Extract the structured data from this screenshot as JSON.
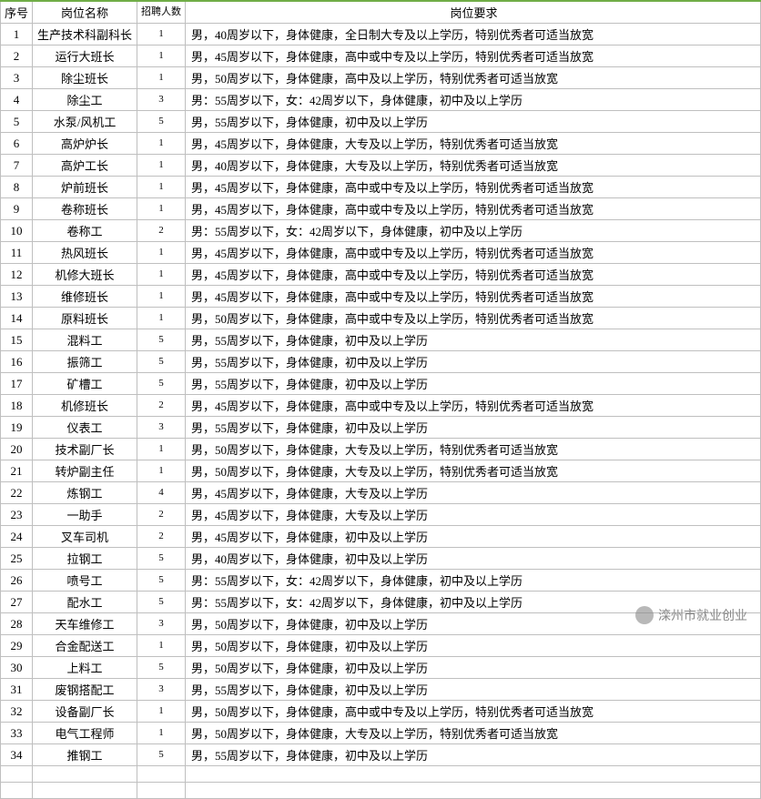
{
  "table": {
    "header": {
      "seq": "序号",
      "position": "岗位名称",
      "count": "招聘人数",
      "requirement": "岗位要求"
    },
    "rows": [
      {
        "seq": "1",
        "position": "生产技术科副科长",
        "count": "1",
        "requirement": "男，40周岁以下，身体健康，全日制大专及以上学历，特别优秀者可适当放宽"
      },
      {
        "seq": "2",
        "position": "运行大班长",
        "count": "1",
        "requirement": "男，45周岁以下，身体健康，高中或中专及以上学历，特别优秀者可适当放宽"
      },
      {
        "seq": "3",
        "position": "除尘班长",
        "count": "1",
        "requirement": "男，50周岁以下，身体健康，高中及以上学历，特别优秀者可适当放宽"
      },
      {
        "seq": "4",
        "position": "除尘工",
        "count": "3",
        "requirement": "男：55周岁以下，女：42周岁以下，身体健康，初中及以上学历"
      },
      {
        "seq": "5",
        "position": "水泵/风机工",
        "count": "5",
        "requirement": "男，55周岁以下，身体健康，初中及以上学历"
      },
      {
        "seq": "6",
        "position": "高炉炉长",
        "count": "1",
        "requirement": "男，45周岁以下，身体健康，大专及以上学历，特别优秀者可适当放宽"
      },
      {
        "seq": "7",
        "position": "高炉工长",
        "count": "1",
        "requirement": "男，40周岁以下，身体健康，大专及以上学历，特别优秀者可适当放宽"
      },
      {
        "seq": "8",
        "position": "炉前班长",
        "count": "1",
        "requirement": "男，45周岁以下，身体健康，高中或中专及以上学历，特别优秀者可适当放宽"
      },
      {
        "seq": "9",
        "position": "卷称班长",
        "count": "1",
        "requirement": "男，45周岁以下，身体健康，高中或中专及以上学历，特别优秀者可适当放宽"
      },
      {
        "seq": "10",
        "position": "卷称工",
        "count": "2",
        "requirement": "男：55周岁以下，女：42周岁以下，身体健康，初中及以上学历"
      },
      {
        "seq": "11",
        "position": "热风班长",
        "count": "1",
        "requirement": "男，45周岁以下，身体健康，高中或中专及以上学历，特别优秀者可适当放宽"
      },
      {
        "seq": "12",
        "position": "机修大班长",
        "count": "1",
        "requirement": "男，45周岁以下，身体健康，高中或中专及以上学历，特别优秀者可适当放宽"
      },
      {
        "seq": "13",
        "position": "维修班长",
        "count": "1",
        "requirement": "男，45周岁以下，身体健康，高中或中专及以上学历，特别优秀者可适当放宽"
      },
      {
        "seq": "14",
        "position": "原料班长",
        "count": "1",
        "requirement": "男，50周岁以下，身体健康，高中或中专及以上学历，特别优秀者可适当放宽"
      },
      {
        "seq": "15",
        "position": "混料工",
        "count": "5",
        "requirement": "男，55周岁以下，身体健康，初中及以上学历"
      },
      {
        "seq": "16",
        "position": "振筛工",
        "count": "5",
        "requirement": "男，55周岁以下，身体健康，初中及以上学历"
      },
      {
        "seq": "17",
        "position": "矿槽工",
        "count": "5",
        "requirement": "男，55周岁以下，身体健康，初中及以上学历"
      },
      {
        "seq": "18",
        "position": "机修班长",
        "count": "2",
        "requirement": "男，45周岁以下，身体健康，高中或中专及以上学历，特别优秀者可适当放宽"
      },
      {
        "seq": "19",
        "position": "仪表工",
        "count": "3",
        "requirement": "男，55周岁以下，身体健康，初中及以上学历"
      },
      {
        "seq": "20",
        "position": "技术副厂长",
        "count": "1",
        "requirement": "男，50周岁以下，身体健康，大专及以上学历，特别优秀者可适当放宽"
      },
      {
        "seq": "21",
        "position": "转炉副主任",
        "count": "1",
        "requirement": "男，50周岁以下，身体健康，大专及以上学历，特别优秀者可适当放宽"
      },
      {
        "seq": "22",
        "position": "炼钢工",
        "count": "4",
        "requirement": "男，45周岁以下，身体健康，大专及以上学历"
      },
      {
        "seq": "23",
        "position": "一助手",
        "count": "2",
        "requirement": "男，45周岁以下，身体健康，大专及以上学历"
      },
      {
        "seq": "24",
        "position": "叉车司机",
        "count": "2",
        "requirement": "男，45周岁以下，身体健康，初中及以上学历"
      },
      {
        "seq": "25",
        "position": "拉钢工",
        "count": "5",
        "requirement": "男，40周岁以下，身体健康，初中及以上学历"
      },
      {
        "seq": "26",
        "position": "喷号工",
        "count": "5",
        "requirement": "男：55周岁以下，女：42周岁以下，身体健康，初中及以上学历"
      },
      {
        "seq": "27",
        "position": "配水工",
        "count": "5",
        "requirement": "男：55周岁以下，女：42周岁以下，身体健康，初中及以上学历"
      },
      {
        "seq": "28",
        "position": "天车维修工",
        "count": "3",
        "requirement": "男，50周岁以下，身体健康，初中及以上学历"
      },
      {
        "seq": "29",
        "position": "合金配送工",
        "count": "1",
        "requirement": "男，50周岁以下，身体健康，初中及以上学历"
      },
      {
        "seq": "30",
        "position": "上料工",
        "count": "5",
        "requirement": "男，50周岁以下，身体健康，初中及以上学历"
      },
      {
        "seq": "31",
        "position": "废钢搭配工",
        "count": "3",
        "requirement": "男，55周岁以下，身体健康，初中及以上学历"
      },
      {
        "seq": "32",
        "position": "设备副厂长",
        "count": "1",
        "requirement": "男，50周岁以下，身体健康，高中或中专及以上学历，特别优秀者可适当放宽"
      },
      {
        "seq": "33",
        "position": "电气工程师",
        "count": "1",
        "requirement": "男，50周岁以下，身体健康，大专及以上学历，特别优秀者可适当放宽"
      },
      {
        "seq": "34",
        "position": "推钢工",
        "count": "5",
        "requirement": "男，55周岁以下，身体健康，初中及以上学历"
      }
    ]
  },
  "watermark": {
    "text": "滦州市就业创业"
  },
  "style": {
    "border_color": "#bfbfbf",
    "header_top_border": "#70ad47",
    "font_size": 13,
    "background": "#ffffff"
  }
}
